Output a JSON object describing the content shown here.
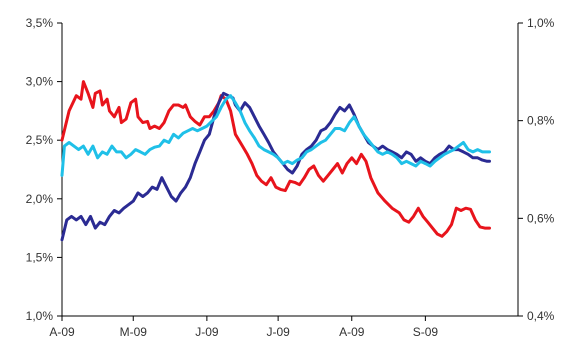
{
  "chart_data": {
    "type": "line",
    "title": "",
    "xlabel": "",
    "ylabel": "",
    "grid": false,
    "legend": "none",
    "x_ticks": [
      "A-09",
      "M-09",
      "J-09",
      "J-09",
      "A-09",
      "S-09"
    ],
    "x_tick_positions": [
      0,
      30,
      61,
      91,
      122,
      153
    ],
    "x_range": [
      0,
      192
    ],
    "y_left": {
      "range": [
        1.0,
        3.5
      ],
      "ticks": [
        1.0,
        1.5,
        2.0,
        2.5,
        3.0,
        3.5
      ],
      "tick_labels": [
        "1,0%",
        "1,5%",
        "2,0%",
        "2,5%",
        "3,0%",
        "3,5%"
      ]
    },
    "y_right": {
      "range": [
        0.4,
        1.0
      ],
      "ticks": [
        0.4,
        0.6,
        0.8,
        1.0
      ],
      "tick_labels": [
        "0,4%",
        "0,6%",
        "0,8%",
        "1,0%"
      ]
    },
    "series": [
      {
        "color": "#e8141c",
        "axis": "left",
        "points": [
          [
            0,
            2.5
          ],
          [
            3,
            2.75
          ],
          [
            6,
            2.88
          ],
          [
            8,
            2.85
          ],
          [
            9,
            3.0
          ],
          [
            11,
            2.9
          ],
          [
            13,
            2.78
          ],
          [
            14,
            2.9
          ],
          [
            16,
            2.92
          ],
          [
            17,
            2.8
          ],
          [
            19,
            2.85
          ],
          [
            20,
            2.75
          ],
          [
            22,
            2.7
          ],
          [
            24,
            2.78
          ],
          [
            25,
            2.65
          ],
          [
            27,
            2.68
          ],
          [
            29,
            2.82
          ],
          [
            31,
            2.85
          ],
          [
            32,
            2.7
          ],
          [
            34,
            2.65
          ],
          [
            36,
            2.66
          ],
          [
            37,
            2.6
          ],
          [
            39,
            2.62
          ],
          [
            41,
            2.6
          ],
          [
            43,
            2.65
          ],
          [
            45,
            2.75
          ],
          [
            47,
            2.8
          ],
          [
            49,
            2.8
          ],
          [
            51,
            2.78
          ],
          [
            52,
            2.8
          ],
          [
            54,
            2.7
          ],
          [
            56,
            2.66
          ],
          [
            58,
            2.63
          ],
          [
            60,
            2.7
          ],
          [
            62,
            2.7
          ],
          [
            64,
            2.75
          ],
          [
            66,
            2.82
          ],
          [
            67,
            2.88
          ],
          [
            69,
            2.85
          ],
          [
            71,
            2.75
          ],
          [
            73,
            2.55
          ],
          [
            76,
            2.45
          ],
          [
            78,
            2.38
          ],
          [
            80,
            2.3
          ],
          [
            82,
            2.2
          ],
          [
            84,
            2.15
          ],
          [
            86,
            2.12
          ],
          [
            88,
            2.18
          ],
          [
            90,
            2.1
          ],
          [
            92,
            2.08
          ],
          [
            94,
            2.07
          ],
          [
            96,
            2.15
          ],
          [
            98,
            2.14
          ],
          [
            100,
            2.12
          ],
          [
            102,
            2.18
          ],
          [
            104,
            2.25
          ],
          [
            106,
            2.28
          ],
          [
            108,
            2.2
          ],
          [
            110,
            2.15
          ],
          [
            112,
            2.2
          ],
          [
            114,
            2.25
          ],
          [
            116,
            2.3
          ],
          [
            118,
            2.22
          ],
          [
            120,
            2.3
          ],
          [
            122,
            2.35
          ],
          [
            124,
            2.3
          ],
          [
            126,
            2.38
          ],
          [
            128,
            2.32
          ],
          [
            130,
            2.18
          ],
          [
            133,
            2.05
          ],
          [
            136,
            1.98
          ],
          [
            139,
            1.92
          ],
          [
            142,
            1.88
          ],
          [
            144,
            1.82
          ],
          [
            146,
            1.8
          ],
          [
            148,
            1.85
          ],
          [
            150,
            1.92
          ],
          [
            152,
            1.85
          ],
          [
            154,
            1.8
          ],
          [
            156,
            1.75
          ],
          [
            158,
            1.7
          ],
          [
            160,
            1.68
          ],
          [
            162,
            1.72
          ],
          [
            164,
            1.78
          ],
          [
            166,
            1.92
          ],
          [
            168,
            1.9
          ],
          [
            170,
            1.92
          ],
          [
            172,
            1.91
          ],
          [
            174,
            1.82
          ],
          [
            176,
            1.76
          ],
          [
            178,
            1.75
          ],
          [
            180,
            1.75
          ]
        ]
      },
      {
        "color": "#2b2b93",
        "axis": "left",
        "points": [
          [
            0,
            1.65
          ],
          [
            2,
            1.82
          ],
          [
            4,
            1.85
          ],
          [
            6,
            1.82
          ],
          [
            8,
            1.85
          ],
          [
            10,
            1.78
          ],
          [
            12,
            1.85
          ],
          [
            14,
            1.75
          ],
          [
            16,
            1.8
          ],
          [
            18,
            1.78
          ],
          [
            20,
            1.85
          ],
          [
            22,
            1.9
          ],
          [
            24,
            1.88
          ],
          [
            26,
            1.92
          ],
          [
            28,
            1.95
          ],
          [
            30,
            1.98
          ],
          [
            32,
            2.05
          ],
          [
            34,
            2.02
          ],
          [
            36,
            2.05
          ],
          [
            38,
            2.1
          ],
          [
            40,
            2.08
          ],
          [
            42,
            2.18
          ],
          [
            44,
            2.1
          ],
          [
            46,
            2.02
          ],
          [
            48,
            1.98
          ],
          [
            50,
            2.05
          ],
          [
            52,
            2.1
          ],
          [
            54,
            2.18
          ],
          [
            56,
            2.3
          ],
          [
            58,
            2.4
          ],
          [
            60,
            2.5
          ],
          [
            62,
            2.55
          ],
          [
            64,
            2.7
          ],
          [
            66,
            2.82
          ],
          [
            68,
            2.9
          ],
          [
            70,
            2.88
          ],
          [
            72,
            2.86
          ],
          [
            73,
            2.8
          ],
          [
            75,
            2.75
          ],
          [
            77,
            2.82
          ],
          [
            79,
            2.78
          ],
          [
            81,
            2.7
          ],
          [
            83,
            2.62
          ],
          [
            85,
            2.55
          ],
          [
            87,
            2.48
          ],
          [
            89,
            2.4
          ],
          [
            91,
            2.35
          ],
          [
            93,
            2.3
          ],
          [
            95,
            2.25
          ],
          [
            97,
            2.22
          ],
          [
            99,
            2.28
          ],
          [
            101,
            2.38
          ],
          [
            103,
            2.42
          ],
          [
            105,
            2.45
          ],
          [
            107,
            2.5
          ],
          [
            109,
            2.58
          ],
          [
            111,
            2.6
          ],
          [
            113,
            2.65
          ],
          [
            115,
            2.72
          ],
          [
            117,
            2.78
          ],
          [
            119,
            2.75
          ],
          [
            121,
            2.8
          ],
          [
            123,
            2.72
          ],
          [
            125,
            2.62
          ],
          [
            127,
            2.55
          ],
          [
            129,
            2.48
          ],
          [
            131,
            2.45
          ],
          [
            133,
            2.42
          ],
          [
            135,
            2.45
          ],
          [
            137,
            2.42
          ],
          [
            139,
            2.4
          ],
          [
            141,
            2.38
          ],
          [
            143,
            2.35
          ],
          [
            145,
            2.4
          ],
          [
            147,
            2.38
          ],
          [
            149,
            2.32
          ],
          [
            151,
            2.35
          ],
          [
            153,
            2.32
          ],
          [
            155,
            2.3
          ],
          [
            157,
            2.35
          ],
          [
            159,
            2.38
          ],
          [
            161,
            2.4
          ],
          [
            163,
            2.45
          ],
          [
            165,
            2.42
          ],
          [
            167,
            2.42
          ],
          [
            169,
            2.4
          ],
          [
            171,
            2.38
          ],
          [
            173,
            2.35
          ],
          [
            175,
            2.35
          ],
          [
            177,
            2.33
          ],
          [
            179,
            2.32
          ],
          [
            180,
            2.32
          ]
        ]
      },
      {
        "color": "#1fc0e8",
        "axis": "left",
        "points": [
          [
            0,
            2.2
          ],
          [
            1,
            2.45
          ],
          [
            3,
            2.48
          ],
          [
            5,
            2.45
          ],
          [
            7,
            2.42
          ],
          [
            9,
            2.45
          ],
          [
            11,
            2.38
          ],
          [
            13,
            2.45
          ],
          [
            15,
            2.35
          ],
          [
            17,
            2.4
          ],
          [
            19,
            2.38
          ],
          [
            21,
            2.45
          ],
          [
            23,
            2.4
          ],
          [
            25,
            2.4
          ],
          [
            27,
            2.35
          ],
          [
            29,
            2.38
          ],
          [
            31,
            2.42
          ],
          [
            33,
            2.4
          ],
          [
            35,
            2.38
          ],
          [
            37,
            2.42
          ],
          [
            39,
            2.44
          ],
          [
            41,
            2.45
          ],
          [
            43,
            2.5
          ],
          [
            45,
            2.48
          ],
          [
            47,
            2.55
          ],
          [
            49,
            2.52
          ],
          [
            51,
            2.56
          ],
          [
            53,
            2.58
          ],
          [
            55,
            2.6
          ],
          [
            57,
            2.58
          ],
          [
            59,
            2.6
          ],
          [
            61,
            2.62
          ],
          [
            63,
            2.66
          ],
          [
            65,
            2.7
          ],
          [
            67,
            2.78
          ],
          [
            69,
            2.85
          ],
          [
            71,
            2.88
          ],
          [
            73,
            2.82
          ],
          [
            75,
            2.75
          ],
          [
            77,
            2.65
          ],
          [
            79,
            2.58
          ],
          [
            81,
            2.52
          ],
          [
            83,
            2.45
          ],
          [
            85,
            2.42
          ],
          [
            87,
            2.4
          ],
          [
            89,
            2.38
          ],
          [
            91,
            2.35
          ],
          [
            93,
            2.3
          ],
          [
            95,
            2.32
          ],
          [
            97,
            2.3
          ],
          [
            99,
            2.33
          ],
          [
            101,
            2.35
          ],
          [
            103,
            2.4
          ],
          [
            105,
            2.42
          ],
          [
            107,
            2.45
          ],
          [
            109,
            2.48
          ],
          [
            111,
            2.5
          ],
          [
            113,
            2.55
          ],
          [
            115,
            2.6
          ],
          [
            117,
            2.6
          ],
          [
            119,
            2.58
          ],
          [
            121,
            2.65
          ],
          [
            123,
            2.7
          ],
          [
            125,
            2.62
          ],
          [
            127,
            2.55
          ],
          [
            129,
            2.5
          ],
          [
            131,
            2.45
          ],
          [
            133,
            2.4
          ],
          [
            135,
            2.38
          ],
          [
            137,
            2.4
          ],
          [
            139,
            2.38
          ],
          [
            141,
            2.35
          ],
          [
            143,
            2.3
          ],
          [
            145,
            2.32
          ],
          [
            147,
            2.3
          ],
          [
            149,
            2.28
          ],
          [
            151,
            2.32
          ],
          [
            153,
            2.3
          ],
          [
            155,
            2.28
          ],
          [
            157,
            2.32
          ],
          [
            159,
            2.35
          ],
          [
            161,
            2.38
          ],
          [
            163,
            2.4
          ],
          [
            165,
            2.42
          ],
          [
            167,
            2.45
          ],
          [
            169,
            2.48
          ],
          [
            171,
            2.42
          ],
          [
            173,
            2.4
          ],
          [
            175,
            2.42
          ],
          [
            177,
            2.4
          ],
          [
            179,
            2.4
          ],
          [
            180,
            2.4
          ]
        ]
      }
    ]
  }
}
